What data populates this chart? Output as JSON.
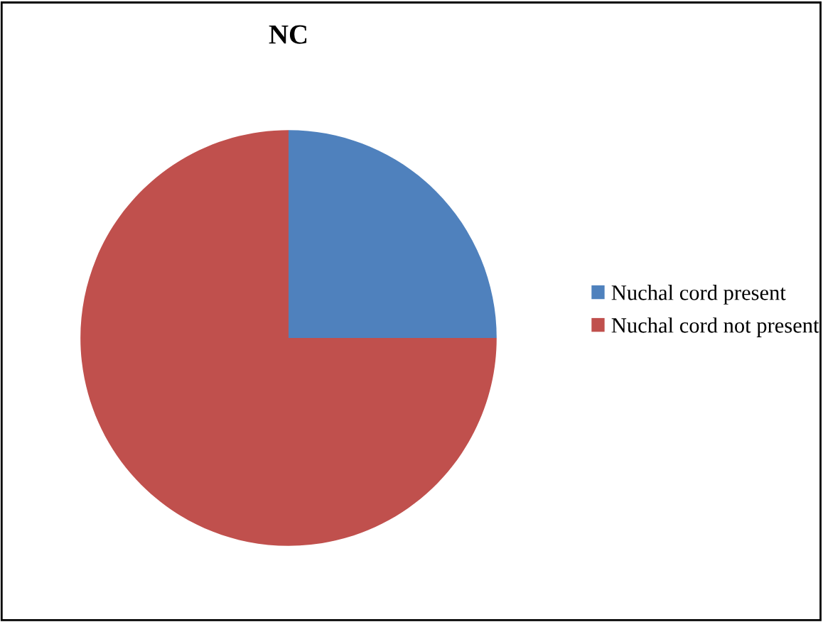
{
  "chart_data": {
    "type": "pie",
    "title": "NC",
    "categories": [
      "Nuchal cord present",
      "Nuchal cord not present"
    ],
    "values": [
      25,
      75
    ],
    "colors": [
      "#4f81bd",
      "#c0504d"
    ],
    "legend": "right"
  }
}
